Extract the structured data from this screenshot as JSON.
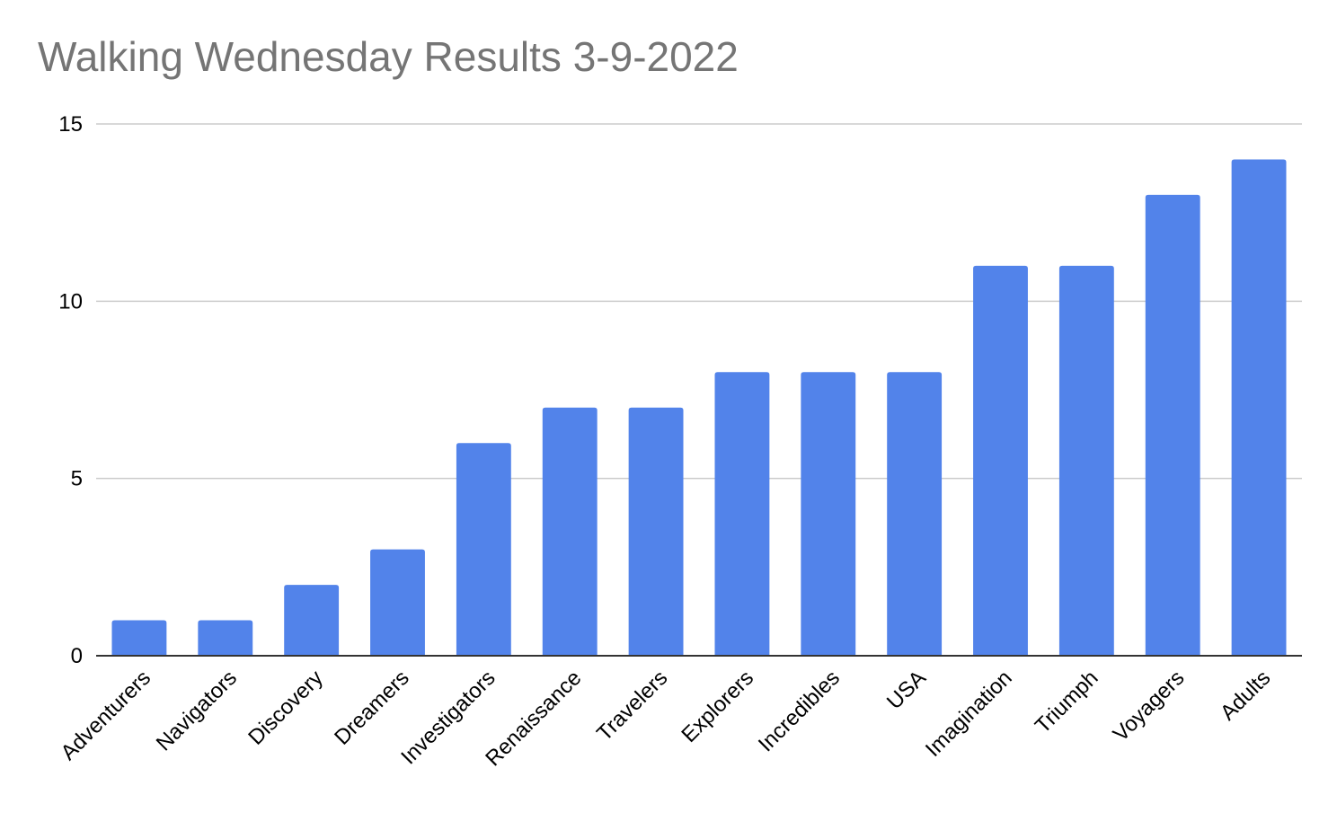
{
  "chart_data": {
    "type": "bar",
    "title": "Walking Wednesday Results 3-9-2022",
    "xlabel": "",
    "ylabel": "",
    "categories": [
      "Adventurers",
      "Navigators",
      "Discovery",
      "Dreamers",
      "Investigators",
      "Renaissance",
      "Travelers",
      "Explorers",
      "Incredibles",
      "USA",
      "Imagination",
      "Triumph",
      "Voyagers",
      "Adults"
    ],
    "values": [
      1,
      1,
      2,
      3,
      6,
      7,
      7,
      8,
      8,
      8,
      11,
      11,
      13,
      14
    ],
    "ylim": [
      0,
      15
    ],
    "yticks": [
      0,
      5,
      10,
      15
    ],
    "grid": true,
    "legend": "none",
    "colors": {
      "bar": "#5283EA",
      "grid": "#CCCCCC",
      "axis": "#333333",
      "title": "#757575"
    }
  }
}
